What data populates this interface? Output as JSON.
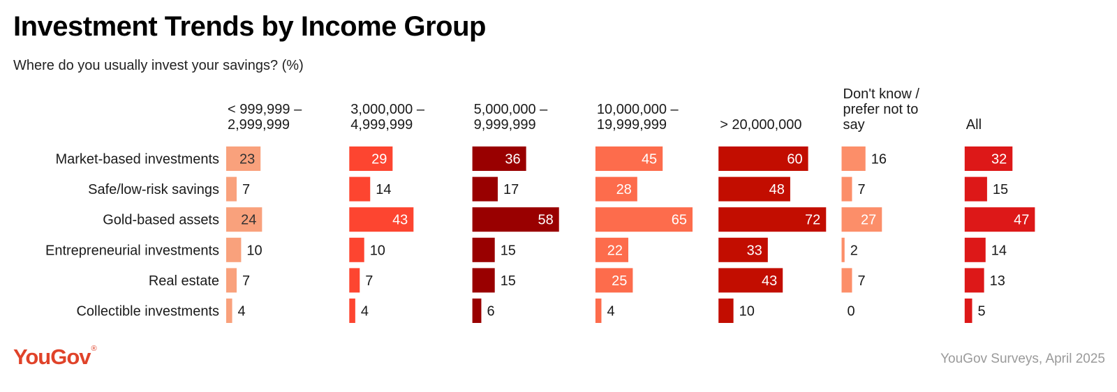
{
  "title": "Investment Trends by Income Group",
  "subtitle": "Where do you usually invest your savings? (%)",
  "footer": {
    "logo": "YouGov",
    "logo_mark": "®",
    "logo_color": "#e0432a",
    "source": "YouGov Surveys, April 2025"
  },
  "chart_data": {
    "type": "bar",
    "orientation": "horizontal",
    "layout": "small multiples, one panel per income group",
    "xlim": [
      0,
      100
    ],
    "categories": [
      "Market-based investments",
      "Safe/low-risk savings",
      "Gold-based assets",
      "Entrepreneurial investments",
      "Real estate",
      "Collectible investments"
    ],
    "series": [
      {
        "name": [
          "< 999,999 –",
          "2,999,999"
        ],
        "color": "#f9a17c",
        "values": [
          23,
          7,
          24,
          10,
          7,
          4
        ]
      },
      {
        "name": [
          "3,000,000 –",
          "4,999,999"
        ],
        "color": "#fd4530",
        "values": [
          29,
          14,
          43,
          10,
          7,
          4
        ]
      },
      {
        "name": [
          "5,000,000 –",
          "9,999,999"
        ],
        "color": "#990000",
        "values": [
          36,
          17,
          58,
          15,
          15,
          6
        ]
      },
      {
        "name": [
          "10,000,000 –",
          "19,999,999"
        ],
        "color": "#fd6c4c",
        "values": [
          45,
          28,
          65,
          22,
          25,
          4
        ]
      },
      {
        "name": [
          "> 20,000,000"
        ],
        "color": "#c20d00",
        "values": [
          60,
          48,
          72,
          33,
          43,
          10
        ]
      },
      {
        "name": [
          "Don't know /",
          "prefer not to",
          "say"
        ],
        "color": "#fc8e69",
        "values": [
          16,
          7,
          27,
          2,
          7,
          0
        ]
      },
      {
        "name": [
          "All"
        ],
        "color": "#dd1818",
        "values": [
          32,
          15,
          47,
          14,
          13,
          5
        ]
      }
    ]
  }
}
